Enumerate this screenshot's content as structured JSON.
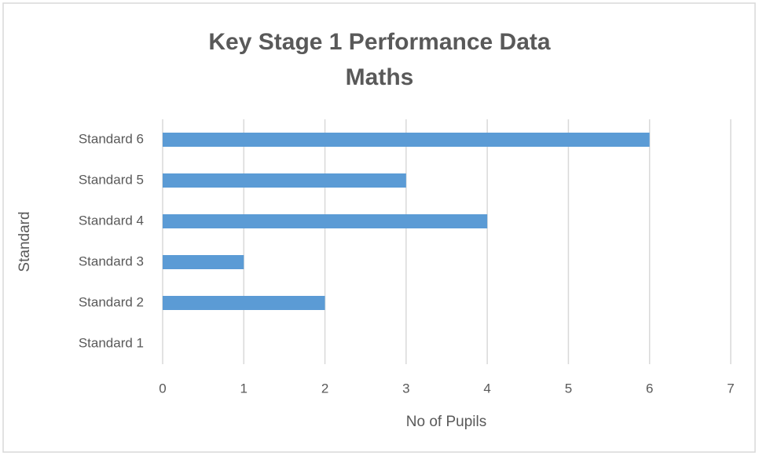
{
  "chart_data": {
    "type": "bar",
    "orientation": "horizontal",
    "title": [
      "Key Stage 1 Performance Data",
      "Maths"
    ],
    "x_label": "No of Pupils",
    "y_label": "Standard",
    "categories": [
      "Standard 1",
      "Standard 2",
      "Standard 3",
      "Standard 4",
      "Standard 5",
      "Standard 6"
    ],
    "values": [
      0,
      2,
      1,
      4,
      3,
      6
    ],
    "color": "#5b9bd5",
    "xlim": [
      0,
      7
    ],
    "xticks": [
      0,
      1,
      2,
      3,
      4,
      5,
      6,
      7
    ],
    "grid": true
  }
}
